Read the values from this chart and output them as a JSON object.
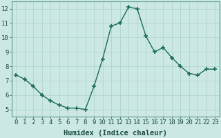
{
  "x": [
    0,
    1,
    2,
    3,
    4,
    5,
    6,
    7,
    8,
    9,
    10,
    11,
    12,
    13,
    14,
    15,
    16,
    17,
    18,
    19,
    20,
    21,
    22,
    23
  ],
  "y": [
    7.4,
    7.1,
    6.6,
    6.0,
    5.6,
    5.3,
    5.1,
    5.1,
    5.0,
    6.6,
    8.5,
    10.8,
    11.0,
    12.1,
    12.0,
    10.1,
    9.0,
    9.3,
    8.6,
    8.0,
    7.5,
    7.4,
    7.8,
    7.8
  ],
  "line_color": "#1a6b5a",
  "marker_color": "#1a6b5a",
  "bg_color": "#cce8e4",
  "grid_color": "#b0d4ce",
  "xlabel": "Humidex (Indice chaleur)",
  "xlabel_fontsize": 7.5,
  "ylabel_ticks": [
    5,
    6,
    7,
    8,
    9,
    10,
    11,
    12
  ],
  "xlim": [
    -0.5,
    23.5
  ],
  "ylim": [
    4.5,
    12.5
  ],
  "xtick_labels": [
    "0",
    "1",
    "2",
    "3",
    "4",
    "5",
    "6",
    "7",
    "8",
    "9",
    "10",
    "11",
    "12",
    "13",
    "14",
    "15",
    "16",
    "17",
    "18",
    "19",
    "20",
    "21",
    "22",
    "23"
  ],
  "tick_fontsize": 6.5
}
